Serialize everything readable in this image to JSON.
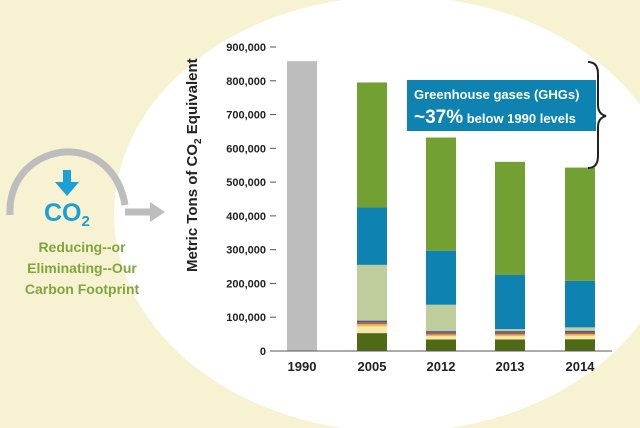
{
  "badge": {
    "icon": "down-arrow-icon",
    "co2_text": "CO",
    "co2_sub": "2",
    "caption_lines": [
      "Reducing--or",
      "Eliminating--Our",
      "Carbon Footprint"
    ]
  },
  "callout": {
    "line1": "Greenhouse gases (GHGs)",
    "line2_big": "~37%",
    "line2_rest": " below 1990 levels"
  },
  "colors": {
    "background": "#f7f3d2",
    "circle": "#ffffff",
    "callout_bg": "#0e83b2",
    "badge_accent": "#1a9fd6",
    "caption_green": "#7ea63c",
    "arrow_gray": "#bdbdbd",
    "bar_gray": "#bdbdbd"
  },
  "chart_data": {
    "type": "bar",
    "stacked": true,
    "categories": [
      "1990",
      "2005",
      "2012",
      "2013",
      "2014"
    ],
    "ylabel": "Metric Tons of CO",
    "ylabel_sub": "2",
    "ylabel_suffix": " Equivalent",
    "ylim": [
      0,
      900000
    ],
    "yticks": [
      0,
      100000,
      200000,
      300000,
      400000,
      500000,
      600000,
      700000,
      800000,
      900000
    ],
    "ytick_labels": [
      "0",
      "100,000",
      "200,000",
      "300,000",
      "400,000",
      "500,000",
      "600,000",
      "700,000",
      "800,000",
      "900,000"
    ],
    "grid": false,
    "legend": "none",
    "series": [
      {
        "color": "#4f6a14",
        "values": [
          0,
          53000,
          34000,
          34000,
          35000
        ]
      },
      {
        "color": "#f4e7a8",
        "values": [
          0,
          20000,
          10000,
          10000,
          10000
        ]
      },
      {
        "color": "#e8b84a",
        "values": [
          0,
          7000,
          5000,
          5000,
          5000
        ]
      },
      {
        "color": "#c0504d",
        "values": [
          0,
          5000,
          5000,
          5000,
          5000
        ]
      },
      {
        "color": "#3a5f8a",
        "values": [
          0,
          5000,
          5000,
          5000,
          5000
        ]
      },
      {
        "color": "#bfcc9c",
        "values": [
          0,
          165000,
          78000,
          6000,
          10000
        ]
      },
      {
        "color": "#0e83b2",
        "values": [
          0,
          170000,
          160000,
          160000,
          138000
        ]
      },
      {
        "color": "#72a032",
        "values": [
          0,
          370000,
          335000,
          335000,
          335000
        ]
      },
      {
        "color": "#bdbdbd",
        "values": [
          858000,
          0,
          0,
          0,
          0
        ]
      }
    ]
  }
}
